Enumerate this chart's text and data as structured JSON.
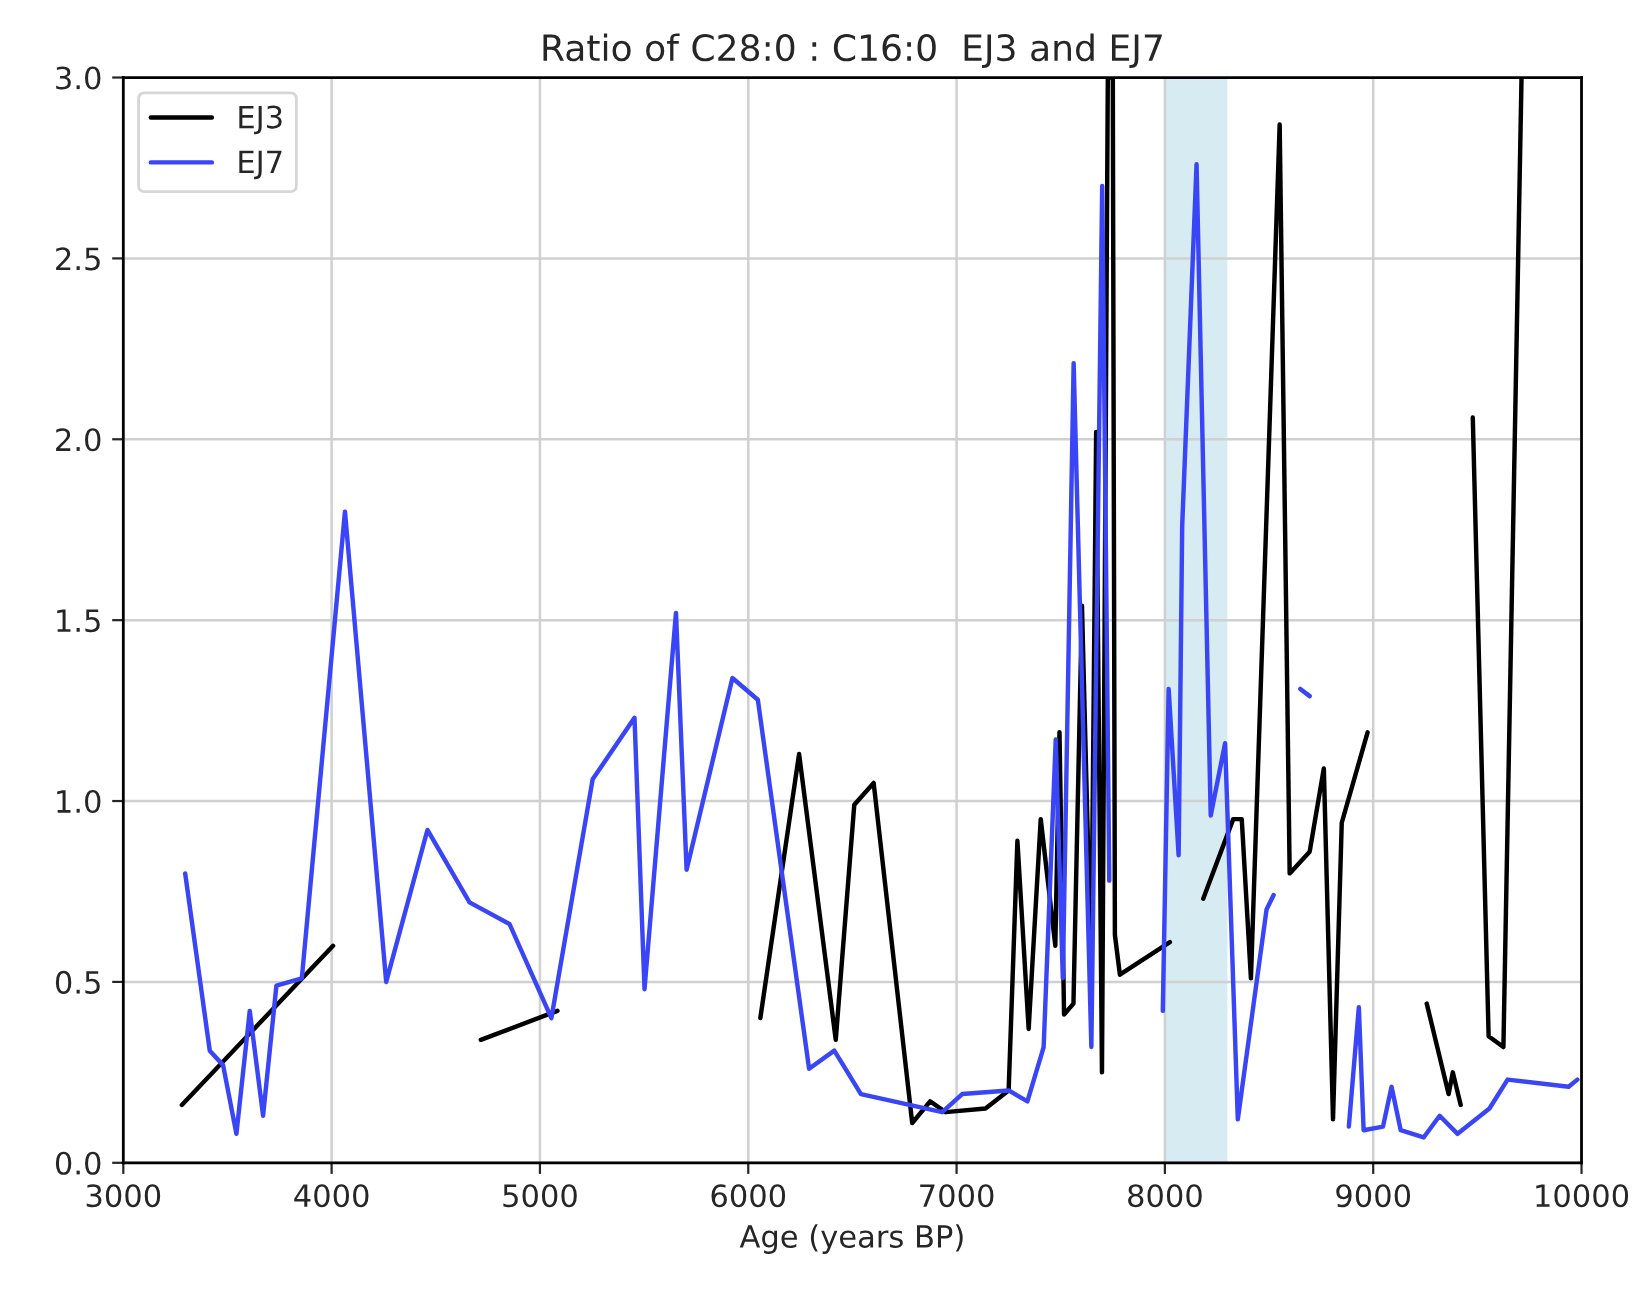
{
  "chart_data": {
    "type": "line",
    "title": "Ratio of C28:0 : C16:0  EJ3 and EJ7",
    "xlabel": "Age (years BP)",
    "xlim": [
      3000,
      10000
    ],
    "xticks": [
      3000,
      4000,
      5000,
      6000,
      7000,
      8000,
      9000,
      10000
    ],
    "ylim": [
      0,
      3.0
    ],
    "yticks": [
      {
        "value": 0,
        "label": "0.0"
      },
      0.5,
      {
        "value": 1,
        "label": "1.0"
      },
      1.5,
      {
        "value": 2,
        "label": "2.0"
      },
      2.5,
      {
        "value": 3,
        "label": "3.0"
      }
    ],
    "grid": true,
    "legend": "top left",
    "line_style": "solid",
    "marker": "none",
    "bands": [
      {
        "axis": "x",
        "from": 8000,
        "to": 8300,
        "color": "#add8e6"
      }
    ],
    "series": [
      {
        "name": "EJ3",
        "color": "#000000",
        "x": [
          3281,
          4007,
          4400,
          4716,
          5084,
          5500,
          6058,
          6244,
          6420,
          6509,
          6602,
          6787,
          6873,
          6947,
          7139,
          7250,
          7292,
          7346,
          7404,
          7474,
          7494,
          7516,
          7561,
          7602,
          7646,
          7670,
          7698,
          7726,
          7750,
          7760,
          7784,
          8024,
          8100,
          8184,
          8328,
          8369,
          8413,
          8551,
          8599,
          8695,
          8763,
          8807,
          8849,
          8973,
          9100,
          9257,
          9362,
          9382,
          9420,
          9450,
          9478,
          9554,
          9625,
          9712
        ],
        "values": [
          0.16,
          0.6,
          null,
          0.34,
          0.42,
          null,
          0.4,
          1.13,
          0.34,
          0.99,
          1.05,
          0.11,
          0.17,
          0.14,
          0.15,
          0.2,
          0.89,
          0.37,
          0.95,
          0.6,
          1.19,
          0.41,
          0.44,
          1.54,
          0.53,
          2.02,
          0.25,
          3.0,
          3.0,
          0.63,
          0.52,
          0.61,
          null,
          0.73,
          0.95,
          0.95,
          0.51,
          2.87,
          0.8,
          0.86,
          1.09,
          0.12,
          0.94,
          1.19,
          null,
          0.44,
          0.19,
          0.25,
          0.16,
          null,
          2.06,
          0.35,
          0.32,
          3.0
        ]
      },
      {
        "name": "EJ7",
        "color": "#3a46f5",
        "x": [
          3297,
          3415,
          3479,
          3543,
          3607,
          3671,
          3735,
          3857,
          4064,
          4262,
          4460,
          4662,
          4854,
          5055,
          5253,
          5454,
          5502,
          5653,
          5704,
          5924,
          6046,
          6292,
          6413,
          6541,
          6931,
          7027,
          7250,
          7340,
          7418,
          7476,
          7510,
          7562,
          7647,
          7699,
          7733,
          7850,
          7990,
          8018,
          8066,
          8083,
          8152,
          8220,
          8289,
          8350,
          8488,
          8522,
          8600,
          8650,
          8695,
          8800,
          8883,
          8931,
          8954,
          9047,
          9088,
          9132,
          9242,
          9319,
          9405,
          9558,
          9645,
          9938,
          9980
        ],
        "values": [
          0.8,
          0.31,
          0.27,
          0.08,
          0.42,
          0.13,
          0.49,
          0.51,
          1.8,
          0.5,
          0.92,
          0.72,
          0.66,
          0.4,
          1.06,
          1.23,
          0.48,
          1.52,
          0.81,
          1.34,
          1.28,
          0.26,
          0.31,
          0.19,
          0.14,
          0.19,
          0.2,
          0.17,
          0.32,
          1.17,
          0.51,
          2.21,
          0.32,
          2.7,
          0.78,
          null,
          0.42,
          1.31,
          0.85,
          1.76,
          2.76,
          0.96,
          1.16,
          0.12,
          0.7,
          0.74,
          null,
          1.31,
          1.29,
          null,
          0.1,
          0.43,
          0.09,
          0.1,
          0.21,
          0.09,
          0.07,
          0.13,
          0.08,
          0.15,
          0.23,
          0.21,
          0.23
        ]
      }
    ]
  }
}
